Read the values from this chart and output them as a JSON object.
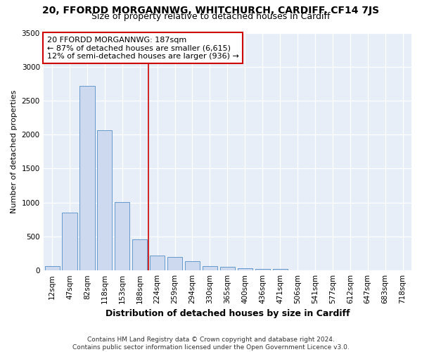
{
  "title_line1": "20, FFORDD MORGANNWG, WHITCHURCH, CARDIFF, CF14 7JS",
  "title_line2": "Size of property relative to detached houses in Cardiff",
  "xlabel": "Distribution of detached houses by size in Cardiff",
  "ylabel": "Number of detached properties",
  "bar_labels": [
    "12sqm",
    "47sqm",
    "82sqm",
    "118sqm",
    "153sqm",
    "188sqm",
    "224sqm",
    "259sqm",
    "294sqm",
    "330sqm",
    "365sqm",
    "400sqm",
    "436sqm",
    "471sqm",
    "506sqm",
    "541sqm",
    "577sqm",
    "612sqm",
    "647sqm",
    "683sqm",
    "718sqm"
  ],
  "bar_values": [
    60,
    850,
    2720,
    2060,
    1010,
    460,
    220,
    200,
    140,
    65,
    55,
    30,
    25,
    18,
    0,
    0,
    0,
    0,
    0,
    0,
    0
  ],
  "bar_color": "#ccd9ee",
  "bar_edge_color": "#6699cc",
  "vline_index": 5,
  "vline_color": "#cc0000",
  "annotation_text": "20 FFORDD MORGANNWG: 187sqm\n← 87% of detached houses are smaller (6,615)\n12% of semi-detached houses are larger (936) →",
  "annotation_box_facecolor": "white",
  "annotation_box_edgecolor": "#cc0000",
  "ylim": [
    0,
    3500
  ],
  "yticks": [
    0,
    500,
    1000,
    1500,
    2000,
    2500,
    3000,
    3500
  ],
  "footnote": "Contains HM Land Registry data © Crown copyright and database right 2024.\nContains public sector information licensed under the Open Government Licence v3.0.",
  "fig_bg": "#ffffff",
  "plot_bg": "#e8eef8",
  "title1_fontsize": 10,
  "title2_fontsize": 9,
  "xlabel_fontsize": 9,
  "ylabel_fontsize": 8,
  "annot_fontsize": 8,
  "tick_fontsize": 7.5,
  "footnote_fontsize": 6.5
}
